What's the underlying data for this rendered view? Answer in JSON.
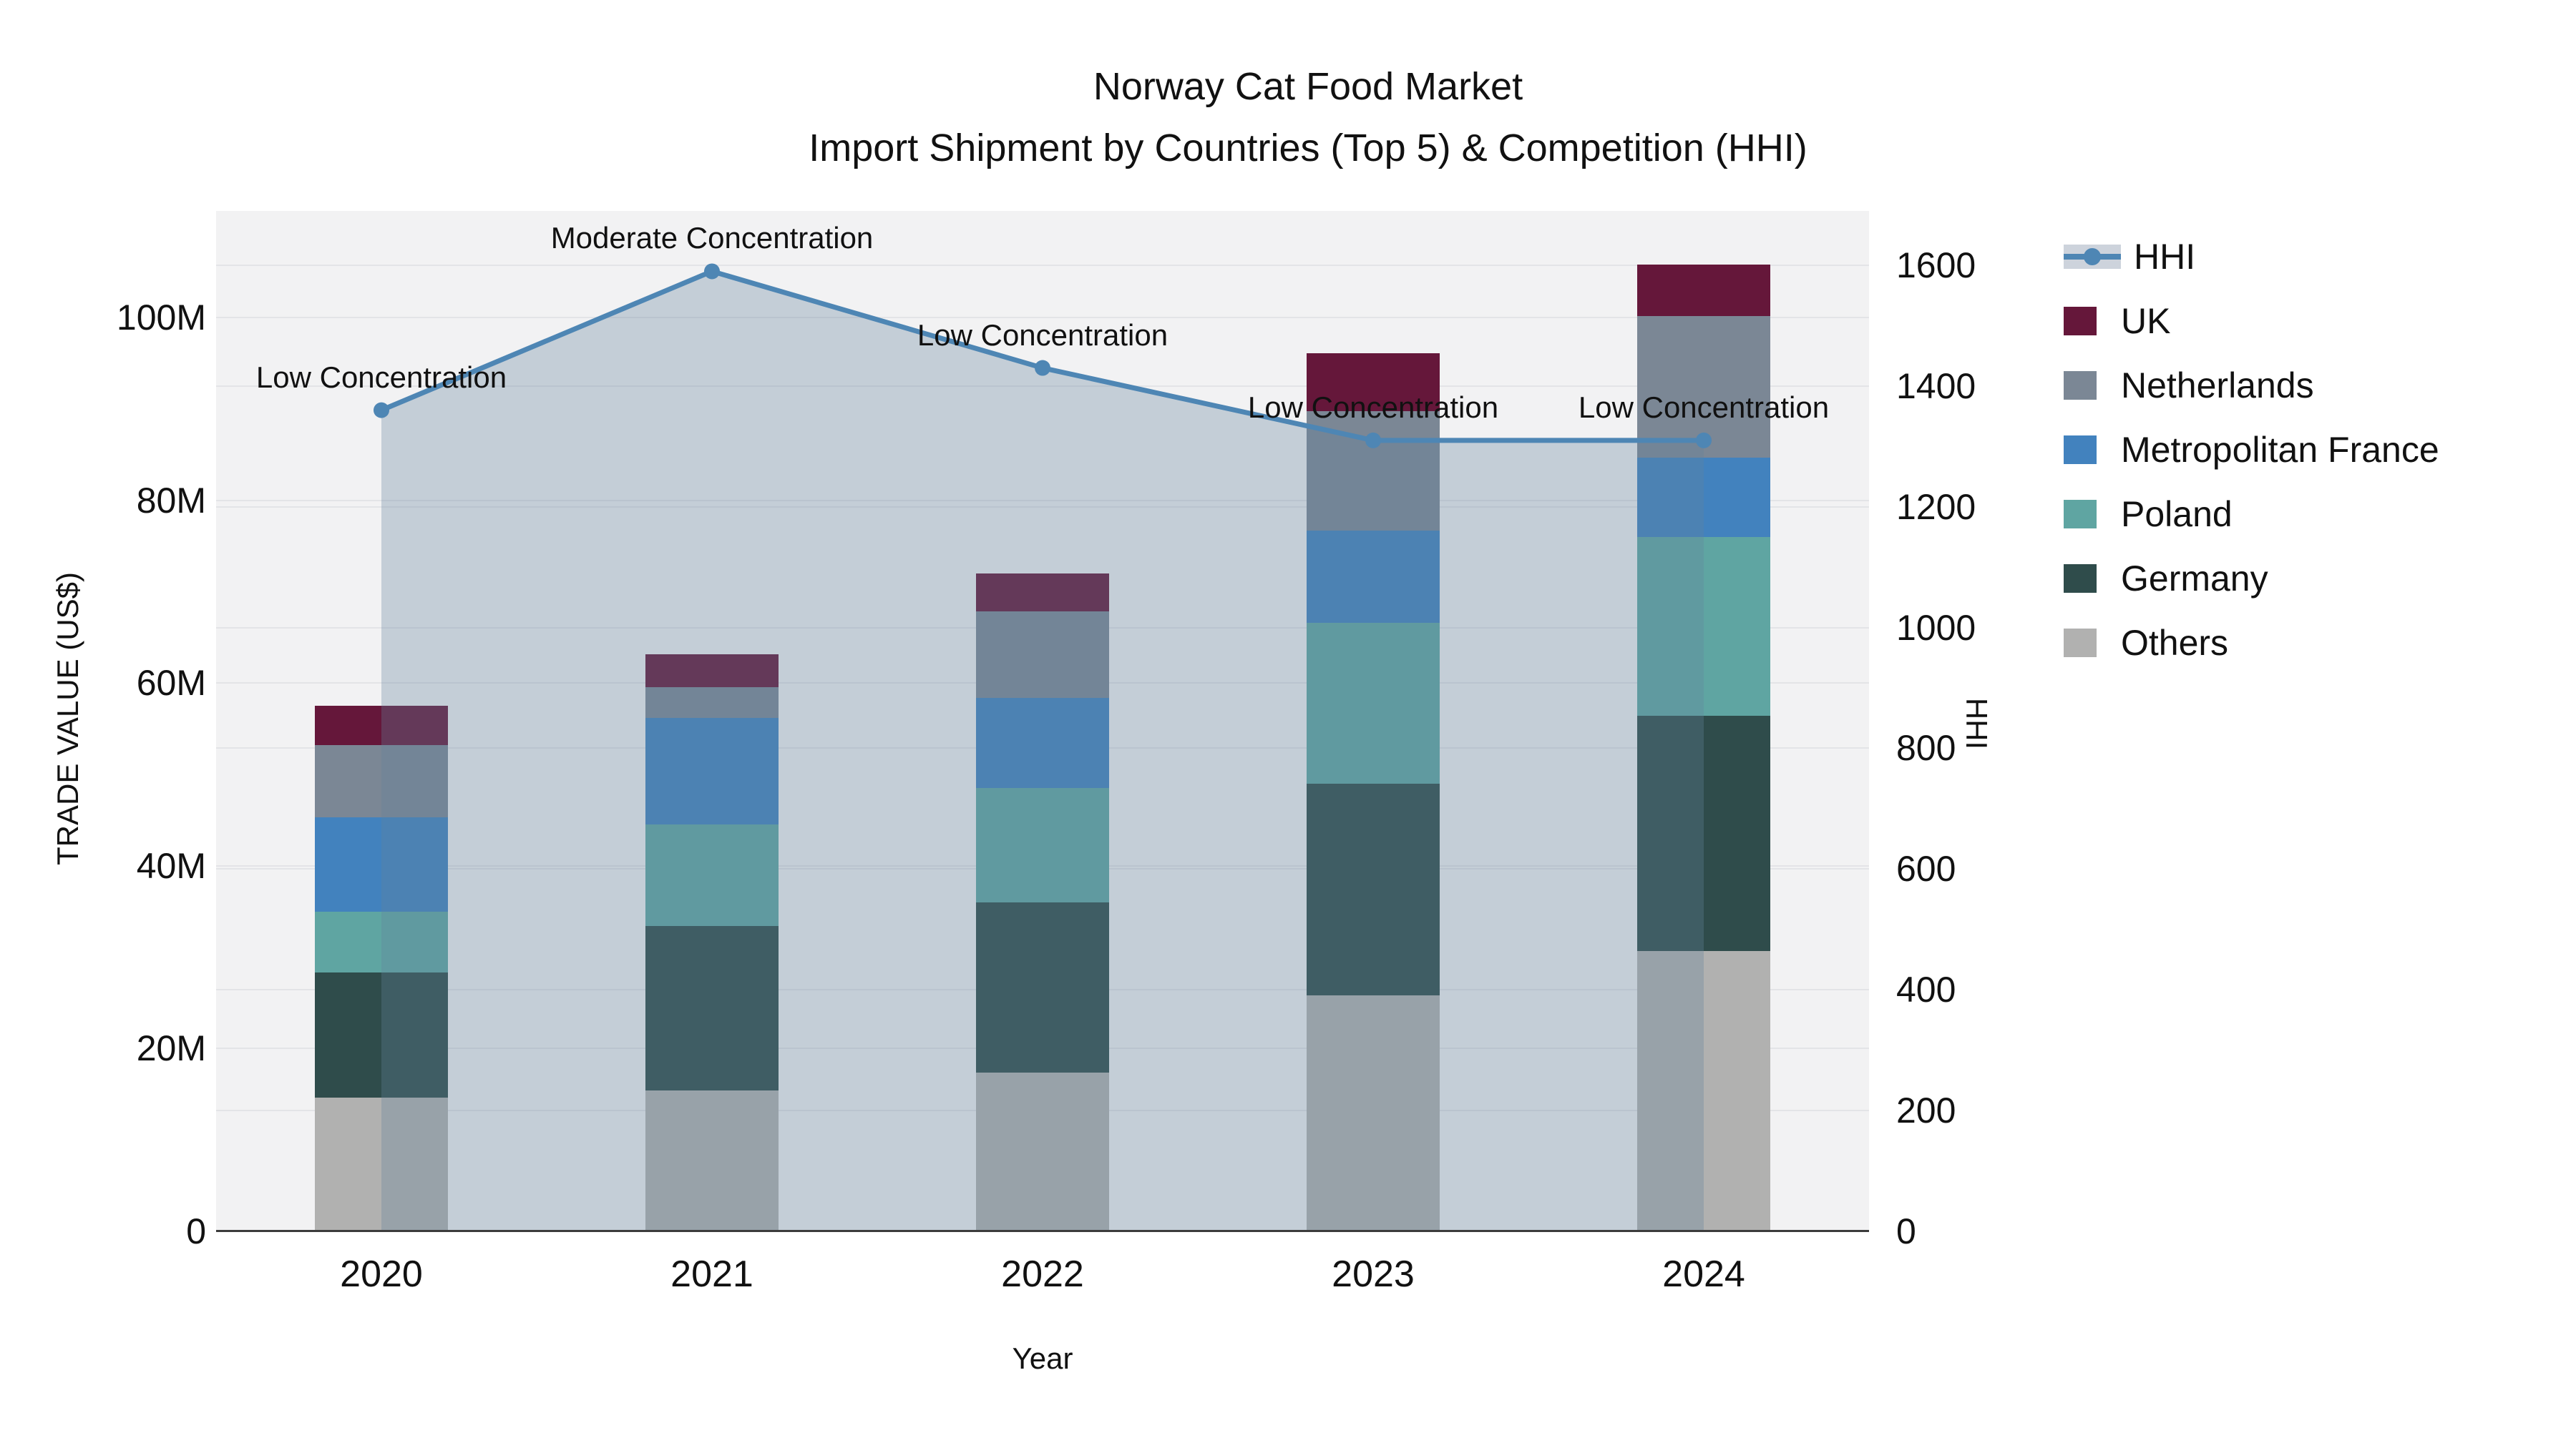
{
  "title": {
    "line1": "Norway Cat Food Market",
    "line2": "Import Shipment by Countries (Top 5) & Competition (HHI)"
  },
  "chart_data": {
    "type": "combo: stacked bar (trade value) + line (HHI)",
    "categories": [
      "2020",
      "2021",
      "2022",
      "2023",
      "2024"
    ],
    "bar_unit": "million US$",
    "stack_order_bottom_to_top": [
      "Others",
      "Germany",
      "Poland",
      "Metropolitan France",
      "Netherlands",
      "UK"
    ],
    "series": [
      {
        "name": "Others",
        "color": "#B1B1B0",
        "values": [
          14.6,
          15.4,
          17.4,
          25.8,
          30.7
        ]
      },
      {
        "name": "Germany",
        "color": "#2F4C4B",
        "values": [
          13.7,
          18.0,
          18.6,
          23.2,
          25.7
        ]
      },
      {
        "name": "Poland",
        "color": "#5FA5A2",
        "values": [
          6.7,
          11.1,
          12.5,
          17.6,
          19.6
        ]
      },
      {
        "name": "Metropolitan France",
        "color": "#4282BE",
        "values": [
          10.3,
          11.7,
          9.9,
          10.1,
          8.7
        ]
      },
      {
        "name": "Netherlands",
        "color": "#7B8795",
        "values": [
          7.9,
          3.4,
          9.5,
          13.1,
          15.5
        ]
      },
      {
        "name": "UK",
        "color": "#65173A",
        "values": [
          4.3,
          3.6,
          4.1,
          6.3,
          5.6
        ]
      }
    ],
    "bar_totals": [
      57.5,
      63.2,
      72.0,
      96.1,
      105.8
    ],
    "line_series": {
      "name": "HHI",
      "color": "#4E86B4",
      "fill_color": "rgba(100,130,155,0.32)",
      "values": [
        1360,
        1590,
        1430,
        1310,
        1310
      ]
    },
    "annotations": [
      {
        "category": "2020",
        "text": "Low Concentration"
      },
      {
        "category": "2021",
        "text": "Moderate Concentration"
      },
      {
        "category": "2022",
        "text": "Low Concentration"
      },
      {
        "category": "2023",
        "text": "Low Concentration"
      },
      {
        "category": "2024",
        "text": "Low Concentration"
      }
    ],
    "y_left": {
      "label": "TRADE VALUE (US$)",
      "tick_labels": [
        "0",
        "20M",
        "40M",
        "60M",
        "80M",
        "100M"
      ],
      "tick_values": [
        0,
        20,
        40,
        60,
        80,
        100
      ],
      "axis_max": 111.7
    },
    "y_right": {
      "label": "HHI",
      "tick_values": [
        0,
        200,
        400,
        600,
        800,
        1000,
        1200,
        1400,
        1600
      ],
      "axis_max": 1690
    },
    "xlabel": "Year",
    "legend_order": [
      "HHI",
      "UK",
      "Netherlands",
      "Metropolitan France",
      "Poland",
      "Germany",
      "Others"
    ],
    "grid": "on",
    "legend_position": "right"
  },
  "colors": {
    "plot_background": "#F2F2F3",
    "gridline": "#E3E4E7",
    "axis_line": "#3C3C3C",
    "text": "#111111"
  }
}
